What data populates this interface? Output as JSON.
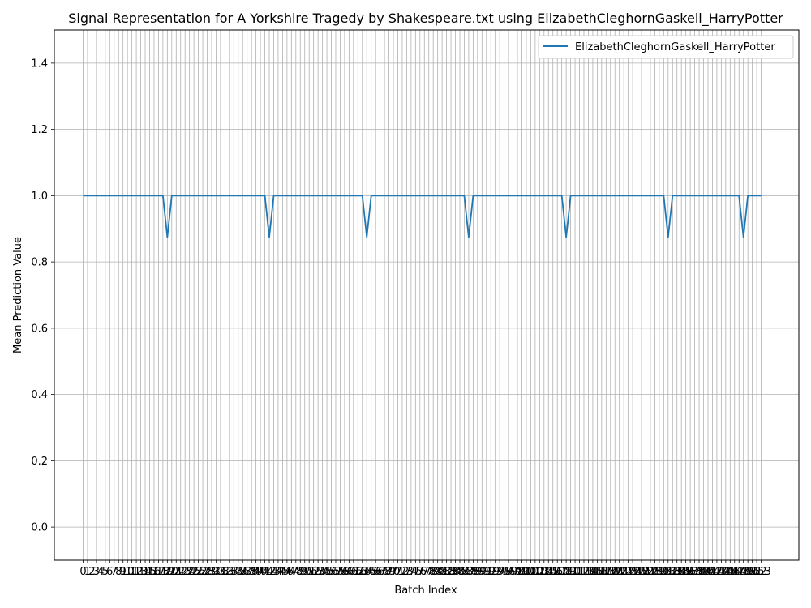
{
  "chart_data": {
    "type": "line",
    "title": "Signal Representation for A Yorkshire Tragedy by Shakespeare.txt using ElizabethCleghornGaskell_HarryPotter",
    "xlabel": "Batch Index",
    "ylabel": "Mean Prediction Value",
    "ylim": [
      -0.1,
      1.5
    ],
    "yticks": [
      "0.0",
      "0.2",
      "0.4",
      "0.6",
      "0.8",
      "1.0",
      "1.2",
      "1.4"
    ],
    "x_count": 154,
    "grid": true,
    "legend_position": "top-right",
    "series": [
      {
        "name": "ElizabethCleghornGaskell_HarryPotter",
        "color": "#1f77b4",
        "default_value": 1.0,
        "dips": [
          {
            "x": 19,
            "y": 0.875
          },
          {
            "x": 42,
            "y": 0.875
          },
          {
            "x": 64,
            "y": 0.875
          },
          {
            "x": 87,
            "y": 0.875
          },
          {
            "x": 109,
            "y": 0.875
          },
          {
            "x": 132,
            "y": 0.875
          },
          {
            "x": 149,
            "y": 0.875
          }
        ]
      }
    ]
  },
  "colors": {
    "grid": "#b0b0b0",
    "axes": "#000000",
    "line": "#1f77b4"
  }
}
